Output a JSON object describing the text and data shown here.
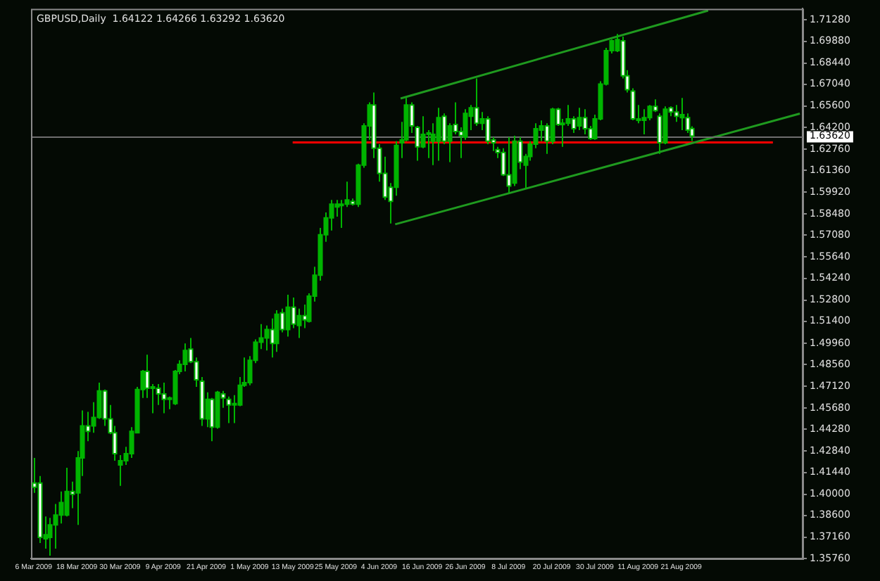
{
  "chart_data": {
    "type": "candlestick",
    "title": "GBPUSD,Daily  1.64122 1.64266 1.63292 1.63620",
    "color": "#00b400",
    "colors": [
      "#ffffff",
      "#ffffff",
      "#00b400",
      "#00b400",
      "#00b400",
      "#00b400",
      "#00b400",
      "#ffffff",
      "#00b400",
      "#00b400",
      "#ffffff",
      "#00b400",
      "#00b400",
      "#ffffff",
      "#ffffff",
      "#ffffff",
      "#00b400",
      "#00b400",
      "#00b400",
      "#00b400",
      "#00b400",
      "#ffffff",
      "#ffffff",
      "#ffffff",
      "#ffffff",
      "#ffffff",
      "#00b400",
      "#00b400",
      "#00b400",
      "#ffffff",
      "#ffffff",
      "#ffffff",
      "#00b400",
      "#ffffff",
      "#00b400",
      "#ffffff",
      "#ffffff",
      "#00b400",
      "#00b400",
      "#00b400",
      "#00b400",
      "#00b400",
      "#00b400",
      "#00b400",
      "#ffffff",
      "#00b400",
      "#ffffff",
      "#00b400",
      "#ffffff",
      "#00b400",
      "#ffffff",
      "#00b400",
      "#00b400",
      "#00b400",
      "#00b400",
      "#00b400",
      "#00b400",
      "#00b400",
      "#00b400",
      "#ffffff",
      "#00b400",
      "#00b400",
      "#00b400",
      "#ffffff",
      "#ffffff",
      "#ffffff",
      "#ffffff",
      "#00b400",
      "#00b400",
      "#00b400",
      "#ffffff",
      "#ffffff",
      "#00b400",
      "#00b400",
      "#00b400",
      "#00b400",
      "#ffffff",
      "#00b400",
      "#ffffff",
      "#ffffff",
      "#00b400",
      "#00b400",
      "#ffffff",
      "#00b400",
      "#ffffff",
      "#ffffff",
      "#ffffff",
      "#ffffff",
      "#ffffff",
      "#00b400",
      "#ffffff",
      "#00b400",
      "#00b400",
      "#00b400",
      "#00b400",
      "#ffffff",
      "#00b400",
      "#ffffff",
      "#00b400",
      "#00b400",
      "#ffffff",
      "#00b400",
      "#ffffff",
      "#ffffff",
      "#00b400",
      "#00b400",
      "#00b400",
      "#00b400",
      "#00b400",
      "#ffffff",
      "#ffffff",
      "#ffffff",
      "#00b400",
      "#00b400",
      "#00b400",
      "#ffffff",
      "#ffffff",
      "#00b400",
      "#ffffff",
      "#ffffff",
      "#00b400",
      "#ffffff",
      "#ffffff",
      null,
      null,
      null,
      null,
      null,
      null,
      null,
      null,
      null,
      null,
      null,
      null,
      null,
      null,
      null,
      null,
      null,
      null,
      null,
      null
    ],
    "categories": [
      "6 Mar 2009",
      null,
      null,
      null,
      null,
      null,
      null,
      null,
      "18 Mar 2009",
      null,
      null,
      null,
      null,
      null,
      null,
      null,
      "30 Mar 2009",
      null,
      null,
      null,
      null,
      null,
      null,
      null,
      "9 Apr 2009",
      null,
      null,
      null,
      null,
      null,
      null,
      null,
      "21 Apr 2009",
      null,
      null,
      null,
      null,
      null,
      null,
      null,
      "1 May 2009",
      null,
      null,
      null,
      null,
      null,
      null,
      null,
      "13 May 2009",
      null,
      null,
      null,
      null,
      null,
      null,
      null,
      "25 May 2009",
      null,
      null,
      null,
      null,
      null,
      null,
      null,
      "4 Jun 2009",
      null,
      null,
      null,
      null,
      null,
      null,
      null,
      "16 Jun 2009",
      null,
      null,
      null,
      null,
      null,
      null,
      null,
      "26 Jun 2009",
      null,
      null,
      null,
      null,
      null,
      null,
      null,
      "8 Jul 2009",
      null,
      null,
      null,
      null,
      null,
      null,
      null,
      "20 Jul 2009",
      null,
      null,
      null,
      null,
      null,
      null,
      null,
      "30 Jul 2009",
      null,
      null,
      null,
      null,
      null,
      null,
      null,
      "11 Aug 2009",
      null,
      null,
      null,
      null,
      null,
      null,
      null,
      "21 Aug 2009",
      null,
      null,
      null,
      null,
      null,
      null,
      null,
      null,
      null,
      null,
      null,
      null,
      null,
      null,
      null,
      null,
      null,
      null,
      null,
      null,
      null,
      null
    ],
    "ohlc": [
      [
        1.4074,
        1.4239,
        1.4009,
        1.4046
      ],
      [
        1.4074,
        1.412,
        1.3678,
        1.3715
      ],
      [
        1.3706,
        1.3853,
        1.3641,
        1.3733
      ],
      [
        1.3715,
        1.3844,
        1.3595,
        1.3798
      ],
      [
        1.3798,
        1.3936,
        1.3641,
        1.3862
      ],
      [
        1.3862,
        1.4018,
        1.3807,
        1.3945
      ],
      [
        1.3862,
        1.4175,
        1.3853,
        1.4018
      ],
      [
        1.4018,
        1.4083,
        1.3908,
        1.3999
      ],
      [
        1.4009,
        1.4285,
        1.3798,
        1.4239
      ],
      [
        1.4239,
        1.4552,
        1.412,
        1.4451
      ],
      [
        1.4451,
        1.4543,
        1.435,
        1.4414
      ],
      [
        1.4451,
        1.4607,
        1.4405,
        1.4506
      ],
      [
        1.4506,
        1.4736,
        1.4497,
        1.4681
      ],
      [
        1.4681,
        1.469,
        1.4451,
        1.4497
      ],
      [
        1.4497,
        1.4589,
        1.4396,
        1.4405
      ],
      [
        1.4405,
        1.4451,
        1.4221,
        1.4267
      ],
      [
        1.4193,
        1.4258,
        1.4055,
        1.4221
      ],
      [
        1.4221,
        1.4313,
        1.4193,
        1.4267
      ],
      [
        1.4267,
        1.4442,
        1.4239,
        1.4414
      ],
      [
        1.4405,
        1.4708,
        1.4405,
        1.469
      ],
      [
        1.469,
        1.4819,
        1.4635,
        1.481
      ],
      [
        1.481,
        1.492,
        1.4635,
        1.4699
      ],
      [
        1.4708,
        1.4727,
        1.4534,
        1.4699
      ],
      [
        1.4699,
        1.4727,
        1.4589,
        1.4662
      ],
      [
        1.4662,
        1.4736,
        1.4534,
        1.4626
      ],
      [
        1.4635,
        1.4644,
        1.4561,
        1.4626
      ],
      [
        1.4598,
        1.4819,
        1.4589,
        1.481
      ],
      [
        1.481,
        1.4883,
        1.4791,
        1.4856
      ],
      [
        1.4856,
        1.4994,
        1.481,
        1.4948
      ],
      [
        1.4957,
        1.503,
        1.4865,
        1.4874
      ],
      [
        1.4874,
        1.4902,
        1.4708,
        1.4754
      ],
      [
        1.4745,
        1.4773,
        1.4451,
        1.4497
      ],
      [
        1.4497,
        1.4672,
        1.4442,
        1.4626
      ],
      [
        1.4626,
        1.4635,
        1.435,
        1.4442
      ],
      [
        1.4442,
        1.4681,
        1.4432,
        1.4672
      ],
      [
        1.4662,
        1.4681,
        1.457,
        1.4635
      ],
      [
        1.4626,
        1.4644,
        1.4469,
        1.4589
      ],
      [
        1.4589,
        1.4653,
        1.4469,
        1.4598
      ],
      [
        1.4589,
        1.4773,
        1.458,
        1.4718
      ],
      [
        1.4718,
        1.4902,
        1.4708,
        1.4736
      ],
      [
        1.4736,
        1.4911,
        1.4718,
        1.4883
      ],
      [
        1.4883,
        1.5021,
        1.4865,
        1.5003
      ],
      [
        1.5003,
        1.5122,
        1.4957,
        1.503
      ],
      [
        1.503,
        1.5113,
        1.4948,
        1.5086
      ],
      [
        1.5086,
        1.5159,
        1.4902,
        1.4994
      ],
      [
        1.4994,
        1.5214,
        1.4939,
        1.5187
      ],
      [
        1.5196,
        1.5224,
        1.5067,
        1.5086
      ],
      [
        1.5086,
        1.5316,
        1.504,
        1.5233
      ],
      [
        1.5233,
        1.5297,
        1.5095,
        1.5122
      ],
      [
        1.5113,
        1.5224,
        1.503,
        1.5178
      ],
      [
        1.5178,
        1.5251,
        1.5095,
        1.515
      ],
      [
        1.5141,
        1.5325,
        1.5132,
        1.5306
      ],
      [
        1.5306,
        1.55,
        1.527,
        1.5444
      ],
      [
        1.5444,
        1.5757,
        1.5408,
        1.5711
      ],
      [
        1.5711,
        1.5858,
        1.5665,
        1.5822
      ],
      [
        1.5822,
        1.5941,
        1.5739,
        1.5913
      ],
      [
        1.5895,
        1.5941,
        1.5831,
        1.5913
      ],
      [
        1.5904,
        1.5941,
        1.5757,
        1.5913
      ],
      [
        1.5913,
        1.6061,
        1.5895,
        1.5941
      ],
      [
        1.5932,
        1.595,
        1.5904,
        1.5913
      ],
      [
        1.5913,
        1.618,
        1.5895,
        1.6171
      ],
      [
        1.6171,
        1.6447,
        1.6153,
        1.6429
      ],
      [
        1.6429,
        1.6585,
        1.6337,
        1.6567
      ],
      [
        1.6567,
        1.665,
        1.6217,
        1.6282
      ],
      [
        1.6282,
        1.6309,
        1.6061,
        1.6116
      ],
      [
        1.6116,
        1.6226,
        1.5941,
        1.5959
      ],
      [
        1.6024,
        1.6052,
        1.5785,
        1.5932
      ],
      [
        1.6024,
        1.6328,
        1.5969,
        1.63
      ],
      [
        1.6318,
        1.6456,
        1.6217,
        1.6338
      ],
      [
        1.6337,
        1.6613,
        1.6328,
        1.6567
      ],
      [
        1.6567,
        1.6585,
        1.6383,
        1.6429
      ],
      [
        1.642,
        1.6429,
        1.6199,
        1.6291
      ],
      [
        1.6291,
        1.6493,
        1.6282,
        1.6374
      ],
      [
        1.6374,
        1.6401,
        1.6217,
        1.6383
      ],
      [
        1.6328,
        1.6447,
        1.6171,
        1.6374
      ],
      [
        1.6328,
        1.6548,
        1.6199,
        1.6484
      ],
      [
        1.6493,
        1.6512,
        1.6309,
        1.6328
      ],
      [
        1.6328,
        1.6447,
        1.619,
        1.6429
      ],
      [
        1.6438,
        1.6585,
        1.6374,
        1.6392
      ],
      [
        1.6392,
        1.642,
        1.6217,
        1.6365
      ],
      [
        1.6355,
        1.6539,
        1.6337,
        1.6512
      ],
      [
        1.6493,
        1.6567,
        1.6401,
        1.6548
      ],
      [
        1.6548,
        1.6742,
        1.6429,
        1.6447
      ],
      [
        1.6447,
        1.6521,
        1.6401,
        1.6475
      ],
      [
        1.6475,
        1.6493,
        1.6309,
        1.6328
      ],
      [
        1.6337,
        1.6355,
        1.6263,
        1.6318
      ],
      [
        1.6272,
        1.6291,
        1.6217,
        1.6254
      ],
      [
        1.6254,
        1.6282,
        1.6098,
        1.6107
      ],
      [
        1.6107,
        1.6355,
        1.5987,
        1.6033
      ],
      [
        1.6052,
        1.6364,
        1.6033,
        1.6328
      ],
      [
        1.6328,
        1.6355,
        1.6144,
        1.619
      ],
      [
        1.6171,
        1.6245,
        1.6015,
        1.6227
      ],
      [
        1.6227,
        1.6328,
        1.6199,
        1.6309
      ],
      [
        1.6309,
        1.6447,
        1.6282,
        1.6411
      ],
      [
        1.6401,
        1.6465,
        1.6328,
        1.6429
      ],
      [
        1.6429,
        1.6447,
        1.6245,
        1.6328
      ],
      [
        1.6328,
        1.6548,
        1.6309,
        1.6539
      ],
      [
        1.6539,
        1.6548,
        1.6429,
        1.6438
      ],
      [
        1.6438,
        1.6475,
        1.6291,
        1.6447
      ],
      [
        1.6447,
        1.6567,
        1.6429,
        1.6475
      ],
      [
        1.6475,
        1.6493,
        1.6383,
        1.6411
      ],
      [
        1.6429,
        1.6548,
        1.6401,
        1.6484
      ],
      [
        1.6484,
        1.6539,
        1.6374,
        1.6411
      ],
      [
        1.6411,
        1.6429,
        1.6337,
        1.6346
      ],
      [
        1.6346,
        1.6503,
        1.6337,
        1.6475
      ],
      [
        1.6475,
        1.6724,
        1.6466,
        1.6705
      ],
      [
        1.6705,
        1.6944,
        1.6696,
        1.6926
      ],
      [
        1.6926,
        1.6999,
        1.6907,
        1.699
      ],
      [
        1.6926,
        1.7036,
        1.6916,
        1.6999
      ],
      [
        1.699,
        1.7018,
        1.6742,
        1.676
      ],
      [
        1.676,
        1.6797,
        1.665,
        1.6668
      ],
      [
        1.6659,
        1.6677,
        1.6466,
        1.6475
      ],
      [
        1.6466,
        1.6567,
        1.6447,
        1.6475
      ],
      [
        1.6466,
        1.6539,
        1.6374,
        1.6484
      ],
      [
        1.6484,
        1.6567,
        1.6466,
        1.6558
      ],
      [
        1.6558,
        1.6604,
        1.6521,
        1.653
      ],
      [
        1.6493,
        1.6512,
        1.6245,
        1.6318
      ],
      [
        1.6318,
        1.6558,
        1.6309,
        1.6539
      ],
      [
        1.6548,
        1.6558,
        1.6493,
        1.6521
      ],
      [
        1.6521,
        1.6567,
        1.6456,
        1.6493
      ],
      [
        1.6484,
        1.6613,
        1.6401,
        1.6503
      ],
      [
        1.6484,
        1.6512,
        1.6383,
        1.6401
      ],
      [
        1.64122,
        1.64266,
        1.63292,
        1.6362
      ],
      null,
      null,
      null,
      null,
      null,
      null,
      null,
      null,
      null,
      null,
      null,
      null,
      null,
      null,
      null,
      null,
      null,
      null,
      null,
      null
    ],
    "series": [
      {
        "type": "line",
        "color": "#1f9a1f",
        "values": [
          null,
          null,
          null,
          null,
          null,
          null,
          null,
          null,
          null,
          null,
          null,
          null,
          null,
          null,
          null,
          null,
          null,
          null,
          null,
          null,
          null,
          null,
          null,
          null,
          null,
          null,
          null,
          null,
          null,
          null,
          null,
          null,
          null,
          null,
          null,
          null,
          null,
          null,
          null,
          null,
          null,
          null,
          null,
          null,
          null,
          null,
          null,
          null,
          null,
          null,
          null,
          null,
          null,
          null,
          null,
          null,
          null,
          null,
          null,
          null,
          null,
          null,
          null,
          null,
          null,
          null,
          null,
          null,
          1.661,
          null,
          null,
          null,
          null,
          null,
          null,
          null,
          null,
          null,
          null,
          null,
          null,
          null,
          null,
          null,
          null,
          null,
          null,
          null,
          null,
          null,
          null,
          null,
          null,
          null,
          null,
          null,
          null,
          null,
          null,
          null,
          null,
          null,
          null,
          null,
          null,
          null,
          null,
          null,
          null,
          null,
          null,
          null,
          null,
          null,
          null,
          null,
          null,
          null,
          null,
          null,
          null,
          null,
          null,
          null,
          null,
          1.719,
          null,
          null,
          null,
          null,
          null,
          null,
          null,
          null,
          null,
          null,
          null,
          null,
          null,
          null,
          null,
          null,
          null
        ]
      },
      {
        "type": "line",
        "color": "#1f9a1f",
        "values": [
          null,
          null,
          null,
          null,
          null,
          null,
          null,
          null,
          null,
          null,
          null,
          null,
          null,
          null,
          null,
          null,
          null,
          null,
          null,
          null,
          null,
          null,
          null,
          null,
          null,
          null,
          null,
          null,
          null,
          null,
          null,
          null,
          null,
          null,
          null,
          null,
          null,
          null,
          null,
          null,
          null,
          null,
          null,
          null,
          null,
          null,
          null,
          null,
          null,
          null,
          null,
          null,
          null,
          null,
          null,
          null,
          null,
          null,
          null,
          null,
          null,
          null,
          null,
          null,
          null,
          null,
          null,
          1.578,
          null,
          null,
          null,
          null,
          null,
          null,
          null,
          null,
          null,
          null,
          null,
          null,
          null,
          null,
          null,
          null,
          null,
          null,
          null,
          null,
          null,
          null,
          null,
          null,
          null,
          null,
          null,
          null,
          null,
          null,
          null,
          null,
          null,
          null,
          null,
          null,
          null,
          null,
          null,
          null,
          null,
          null,
          null,
          null,
          null,
          null,
          null,
          null,
          null,
          null,
          null,
          null,
          null,
          null,
          null,
          null,
          null,
          null,
          null,
          null,
          null,
          null,
          null,
          null,
          null,
          null,
          null,
          null,
          null,
          null,
          null,
          null,
          null,
          null,
          1.651
        ]
      },
      {
        "type": "line",
        "color": "#ff0000",
        "values": [
          null,
          null,
          null,
          null,
          null,
          null,
          null,
          null,
          null,
          null,
          null,
          null,
          null,
          null,
          null,
          null,
          null,
          null,
          null,
          null,
          null,
          null,
          null,
          null,
          null,
          null,
          null,
          null,
          null,
          null,
          null,
          null,
          null,
          null,
          null,
          null,
          null,
          null,
          null,
          null,
          null,
          null,
          null,
          null,
          null,
          null,
          null,
          null,
          1.632,
          null,
          null,
          null,
          null,
          null,
          null,
          null,
          null,
          null,
          null,
          null,
          null,
          null,
          null,
          null,
          null,
          null,
          null,
          null,
          null,
          null,
          null,
          null,
          null,
          null,
          null,
          null,
          null,
          null,
          null,
          null,
          null,
          null,
          null,
          null,
          null,
          null,
          null,
          null,
          null,
          null,
          null,
          null,
          null,
          null,
          null,
          null,
          null,
          null,
          null,
          null,
          null,
          null,
          null,
          null,
          null,
          null,
          null,
          null,
          null,
          null,
          null,
          null,
          null,
          null,
          null,
          null,
          null,
          null,
          null,
          null,
          null,
          null,
          null,
          null,
          null,
          null,
          null,
          null,
          null,
          null,
          null,
          null,
          null,
          null,
          null,
          null,
          null,
          1.632,
          null,
          null,
          null,
          null,
          null
        ]
      }
    ],
    "ref_lines": [
      {
        "axis": "y",
        "value": 1.6362,
        "label": "1.63620",
        "color": "#6e6e6e"
      }
    ],
    "ylim": [
      1.3576,
      1.7202
    ],
    "yticks": [
      {
        "value": 1.3576,
        "label": "1.35760"
      },
      {
        "value": 1.3716,
        "label": "1.37160"
      },
      {
        "value": 1.386,
        "label": "1.38600"
      },
      {
        "value": 1.4,
        "label": "1.40000"
      },
      {
        "value": 1.4144,
        "label": "1.41440"
      },
      {
        "value": 1.4284,
        "label": "1.42840"
      },
      {
        "value": 1.4428,
        "label": "1.44280"
      },
      {
        "value": 1.4568,
        "label": "1.45680"
      },
      {
        "value": 1.4712,
        "label": "1.47120"
      },
      {
        "value": 1.4856,
        "label": "1.48560"
      },
      {
        "value": 1.4996,
        "label": "1.49960"
      },
      {
        "value": 1.514,
        "label": "1.51400"
      },
      {
        "value": 1.528,
        "label": "1.52800"
      },
      {
        "value": 1.5424,
        "label": "1.54240"
      },
      {
        "value": 1.5564,
        "label": "1.55640"
      },
      {
        "value": 1.5708,
        "label": "1.57080"
      },
      {
        "value": 1.5848,
        "label": "1.58480"
      },
      {
        "value": 1.5992,
        "label": "1.59920"
      },
      {
        "value": 1.6136,
        "label": "1.61360"
      },
      {
        "value": 1.6276,
        "label": "1.62760"
      },
      {
        "value": 1.642,
        "label": "1.64200"
      },
      {
        "value": 1.656,
        "label": "1.65600"
      },
      {
        "value": 1.6704,
        "label": "1.67040"
      },
      {
        "value": 1.6844,
        "label": "1.68440"
      },
      {
        "value": 1.6988,
        "label": "1.69880"
      },
      {
        "value": 1.7128,
        "label": "1.71280"
      }
    ]
  }
}
